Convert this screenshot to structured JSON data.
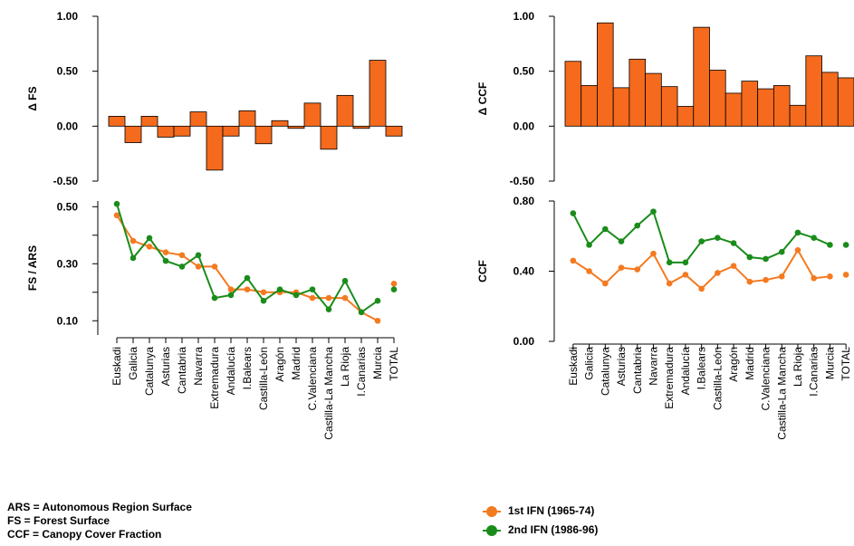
{
  "colors": {
    "first": "#F47A20",
    "second": "#1A8C1A",
    "bar": "#F56A1C",
    "axis": "#000000"
  },
  "chart_data": [
    {
      "id": "dfs",
      "type": "bar",
      "ylabel": "Δ FS",
      "ylim": [
        -0.5,
        1.0
      ],
      "yticks": [
        -0.5,
        0.0,
        0.5,
        1.0
      ],
      "ytick_labels": [
        "-0.50",
        "0.00",
        "0.50",
        "1.00"
      ],
      "categories": [
        "Euskadi",
        "Galicia",
        "Catalunya",
        "Asturias",
        "Cantabria",
        "Navarra",
        "Extremadura",
        "Andalucía",
        "I.Balears",
        "Castilla-León",
        "Aragón",
        "Madrid",
        "C.Valenciana",
        "Castilla-La Mancha",
        "La Rioja",
        "I.Canarias",
        "Murcia",
        "TOTAL"
      ],
      "values": [
        0.09,
        -0.15,
        0.09,
        -0.1,
        -0.09,
        0.13,
        -0.4,
        -0.09,
        0.14,
        -0.16,
        0.05,
        -0.02,
        0.21,
        -0.21,
        0.28,
        -0.02,
        0.6,
        -0.09
      ]
    },
    {
      "id": "dccf",
      "type": "bar",
      "ylabel": "Δ CCF",
      "ylim": [
        -0.5,
        1.0
      ],
      "yticks": [
        -0.5,
        0.0,
        0.5,
        1.0
      ],
      "ytick_labels": [
        "-0.50",
        "0.00",
        "0.50",
        "1.00"
      ],
      "categories": [
        "Euskadi",
        "Galicia",
        "Catalunya",
        "Asturias",
        "Cantabria",
        "Navarra",
        "Extremadura",
        "Andalucía",
        "I.Balears",
        "Castilla-León",
        "Aragón",
        "Madrid",
        "C.Valenciana",
        "Castilla-La Mancha",
        "La Rioja",
        "I.Canarias",
        "Murcia",
        "TOTAL"
      ],
      "values": [
        0.59,
        0.37,
        0.94,
        0.35,
        0.61,
        0.48,
        0.36,
        0.18,
        0.9,
        0.51,
        0.3,
        0.41,
        0.34,
        0.37,
        0.19,
        0.64,
        0.49,
        0.44
      ]
    },
    {
      "id": "fsars",
      "type": "line",
      "ylabel": "FS / ARS",
      "ylim": [
        0.05,
        0.52
      ],
      "yticks": [
        0.1,
        0.2,
        0.3,
        0.4,
        0.5
      ],
      "ytick_labels": [
        "0.10",
        "",
        "0.30",
        "",
        "0.50"
      ],
      "categories": [
        "Euskadi",
        "Galicia",
        "Catalunya",
        "Asturias",
        "Cantabria",
        "Navarra",
        "Extremadura",
        "Andalucía",
        "I.Balears",
        "Castilla-León",
        "Aragón",
        "Madrid",
        "C.Valenciana",
        "Castilla-La Mancha",
        "La Rioja",
        "I.Canarias",
        "Murcia",
        "TOTAL"
      ],
      "series": [
        {
          "values": [
            0.47,
            0.38,
            0.36,
            0.34,
            0.33,
            0.29,
            0.29,
            0.21,
            0.21,
            0.2,
            0.2,
            0.2,
            0.18,
            0.18,
            0.18,
            0.13,
            0.1,
            0.23
          ]
        },
        {
          "values": [
            0.51,
            0.32,
            0.39,
            0.31,
            0.29,
            0.33,
            0.18,
            0.19,
            0.25,
            0.17,
            0.21,
            0.19,
            0.21,
            0.14,
            0.24,
            0.13,
            0.17,
            0.21
          ]
        }
      ],
      "total_separate": true
    },
    {
      "id": "ccf",
      "type": "line",
      "ylabel": "CCF",
      "ylim": [
        0.0,
        0.8
      ],
      "yticks": [
        0.0,
        0.4,
        0.8
      ],
      "ytick_labels": [
        "0.00",
        "0.40",
        "0.80"
      ],
      "categories": [
        "Euskadi",
        "Galicia",
        "Catalunya",
        "Asturias",
        "Cantabria",
        "Navarra",
        "Extremadura",
        "Andalucía",
        "I.Balears",
        "Castilla-León",
        "Aragón",
        "Madrid",
        "C.Valenciana",
        "Castilla-La Mancha",
        "La Rioja",
        "I.Canarias",
        "Murcia",
        "TOTAL"
      ],
      "series": [
        {
          "values": [
            0.46,
            0.4,
            0.33,
            0.42,
            0.41,
            0.5,
            0.33,
            0.38,
            0.3,
            0.39,
            0.43,
            0.34,
            0.35,
            0.37,
            0.52,
            0.36,
            0.37,
            0.38
          ]
        },
        {
          "values": [
            0.73,
            0.55,
            0.64,
            0.57,
            0.66,
            0.74,
            0.45,
            0.45,
            0.57,
            0.59,
            0.56,
            0.48,
            0.47,
            0.51,
            0.62,
            0.59,
            0.55,
            0.55
          ]
        }
      ],
      "total_separate": true
    }
  ],
  "notes": [
    "ARS = Autonomous Region Surface",
    "FS = Forest Surface",
    "CCF = Canopy Cover Fraction"
  ],
  "legend": [
    {
      "label": "1st IFN (1965-74)"
    },
    {
      "label": "2nd IFN (1986-96)"
    }
  ]
}
